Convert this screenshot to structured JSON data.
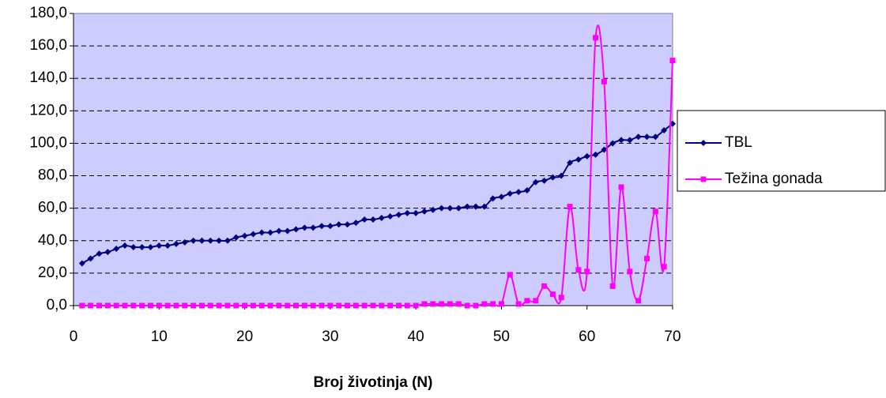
{
  "chart_data": {
    "type": "line",
    "x_label": "Broj životinja (N)",
    "x": [
      1,
      2,
      3,
      4,
      5,
      6,
      7,
      8,
      9,
      10,
      11,
      12,
      13,
      14,
      15,
      16,
      17,
      18,
      19,
      20,
      21,
      22,
      23,
      24,
      25,
      26,
      27,
      28,
      29,
      30,
      31,
      32,
      33,
      34,
      35,
      36,
      37,
      38,
      39,
      40,
      41,
      42,
      43,
      44,
      45,
      46,
      47,
      48,
      49,
      50,
      51,
      52,
      53,
      54,
      55,
      56,
      57,
      58,
      59,
      60,
      61,
      62,
      63,
      64,
      65,
      66,
      67,
      68,
      69,
      70
    ],
    "series": [
      {
        "name": "TBL",
        "color": "#000080",
        "marker": "diamond",
        "values": [
          26,
          29,
          32,
          33,
          35,
          37,
          36,
          36,
          36,
          37,
          37,
          38,
          39,
          40,
          40,
          40,
          40,
          40,
          42,
          43,
          44,
          45,
          45,
          46,
          46,
          47,
          48,
          48,
          49,
          49,
          50,
          50,
          51,
          53,
          53,
          54,
          55,
          56,
          57,
          57,
          58,
          59,
          60,
          60,
          60,
          61,
          61,
          61,
          66,
          67,
          69,
          70,
          71,
          76,
          77,
          79,
          80,
          88,
          90,
          92,
          93,
          96,
          100,
          102,
          102,
          104,
          104,
          104,
          108,
          112
        ]
      },
      {
        "name": "Težina gonada",
        "color": "#ff00ff",
        "marker": "square",
        "values": [
          0,
          0,
          0,
          0,
          0,
          0,
          0,
          0,
          0,
          0,
          0,
          0,
          0,
          0,
          0,
          0,
          0,
          0,
          0,
          0,
          0,
          0,
          0,
          0,
          0,
          0,
          0,
          0,
          0,
          0,
          0,
          0,
          0,
          0,
          0,
          0,
          0,
          0,
          0,
          0,
          1,
          1,
          1,
          1,
          1,
          0,
          0,
          1,
          1,
          1,
          19,
          1,
          3,
          3,
          12,
          7,
          5,
          61,
          22,
          21,
          165,
          138,
          12,
          73,
          21,
          3,
          29,
          58,
          24,
          151
        ]
      }
    ],
    "xlim": [
      0,
      70
    ],
    "xticks": [
      0,
      10,
      20,
      30,
      40,
      50,
      60,
      70
    ],
    "ylim": [
      0,
      180
    ],
    "yticks": [
      {
        "value": 0,
        "label": "0,0"
      },
      {
        "value": 20,
        "label": "20,0"
      },
      {
        "value": 40,
        "label": "40,0"
      },
      {
        "value": 60,
        "label": "60,0"
      },
      {
        "value": 80,
        "label": "80,0"
      },
      {
        "value": 100,
        "label": "100,0"
      },
      {
        "value": 120,
        "label": "120,0"
      },
      {
        "value": 140,
        "label": "140,0"
      },
      {
        "value": 160,
        "label": "160,0"
      },
      {
        "value": 180,
        "label": "180,0"
      }
    ],
    "grid": true,
    "smooth": true,
    "plot_background": "#ccccff",
    "legend": "right"
  }
}
